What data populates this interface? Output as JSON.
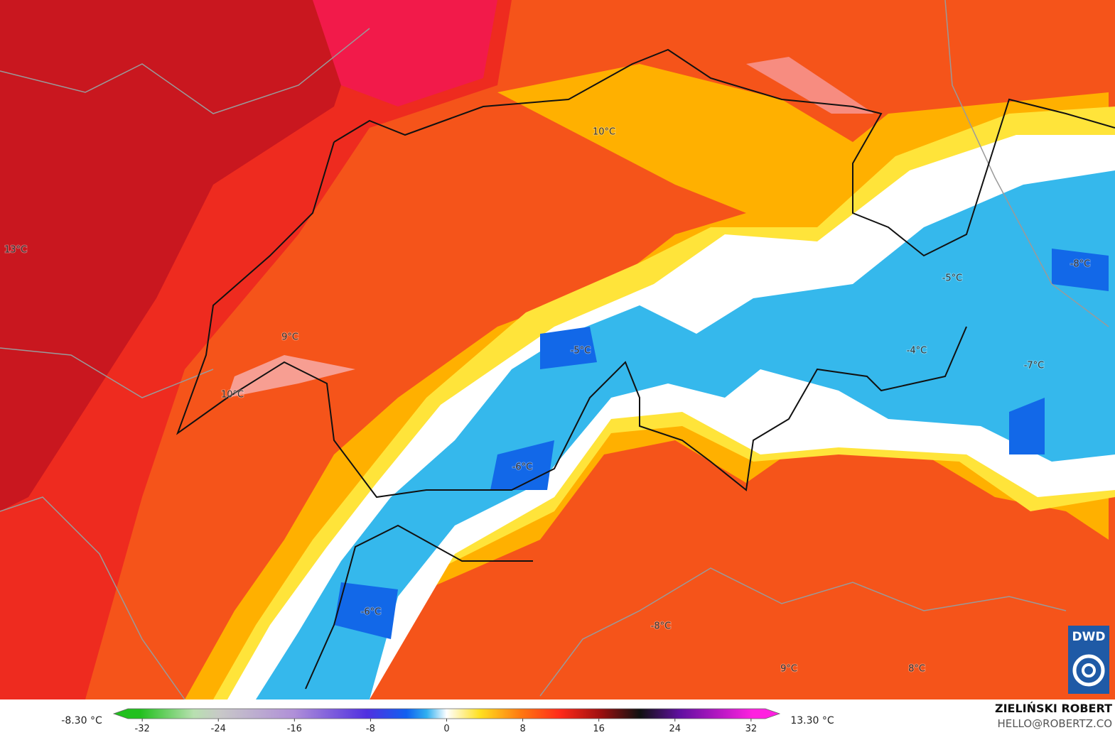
{
  "map": {
    "temperature_labels": [
      "10°C",
      "13°C",
      "9°C",
      "10°C",
      "-5°C",
      "-6°C",
      "-6°C",
      "-8°C",
      "9°C",
      "8°C",
      "-5°C",
      "-8°C",
      "-4°C",
      "-7°C"
    ],
    "colorbar": {
      "min_label": "-8.30 °C",
      "max_label": "13.30 °C",
      "range": [
        -35,
        35
      ],
      "ticks": [
        -32,
        -24,
        -16,
        -8,
        0,
        8,
        16,
        24,
        32
      ]
    },
    "credit": {
      "author": "ZIELIŃSKI ROBERT",
      "contact": "HELLO@ROBERTZ.CO",
      "logo": "DWD"
    }
  }
}
